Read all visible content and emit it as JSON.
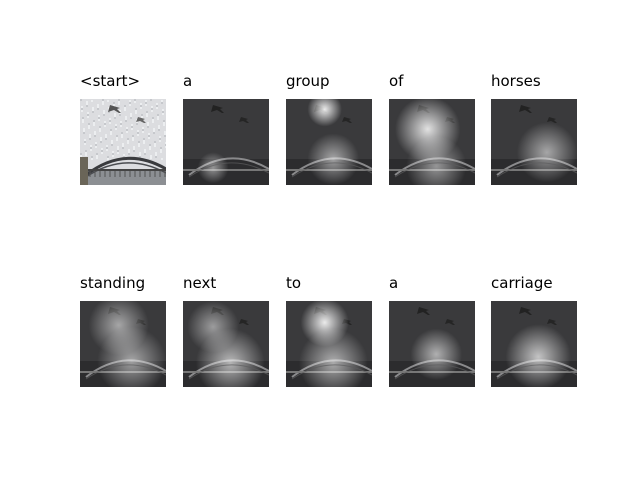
{
  "figure": {
    "panels": [
      {
        "word": "<start>",
        "kind": "original",
        "attention": []
      },
      {
        "word": "a",
        "kind": "attention",
        "attention": [
          [
            0.35,
            0.8,
            0.18,
            0.5
          ]
        ]
      },
      {
        "word": "group",
        "kind": "attention",
        "attention": [
          [
            0.45,
            0.12,
            0.2,
            0.9
          ],
          [
            0.55,
            0.7,
            0.3,
            0.55
          ]
        ]
      },
      {
        "word": "of",
        "kind": "attention",
        "attention": [
          [
            0.45,
            0.35,
            0.38,
            0.85
          ],
          [
            0.55,
            0.78,
            0.35,
            0.5
          ]
        ]
      },
      {
        "word": "horses",
        "kind": "attention",
        "attention": [
          [
            0.65,
            0.62,
            0.35,
            0.55
          ]
        ]
      },
      {
        "word": "standing",
        "kind": "attention",
        "attention": [
          [
            0.45,
            0.28,
            0.35,
            0.55
          ],
          [
            0.6,
            0.7,
            0.4,
            0.55
          ]
        ]
      },
      {
        "word": "next",
        "kind": "attention",
        "attention": [
          [
            0.35,
            0.3,
            0.3,
            0.5
          ],
          [
            0.55,
            0.72,
            0.4,
            0.65
          ]
        ]
      },
      {
        "word": "to",
        "kind": "attention",
        "attention": [
          [
            0.45,
            0.25,
            0.28,
            0.9
          ],
          [
            0.55,
            0.72,
            0.4,
            0.6
          ]
        ]
      },
      {
        "word": "a",
        "kind": "attention",
        "attention": [
          [
            0.55,
            0.62,
            0.3,
            0.6
          ]
        ]
      },
      {
        "word": "carriage",
        "kind": "attention",
        "attention": [
          [
            0.55,
            0.65,
            0.38,
            0.7
          ]
        ]
      }
    ]
  }
}
